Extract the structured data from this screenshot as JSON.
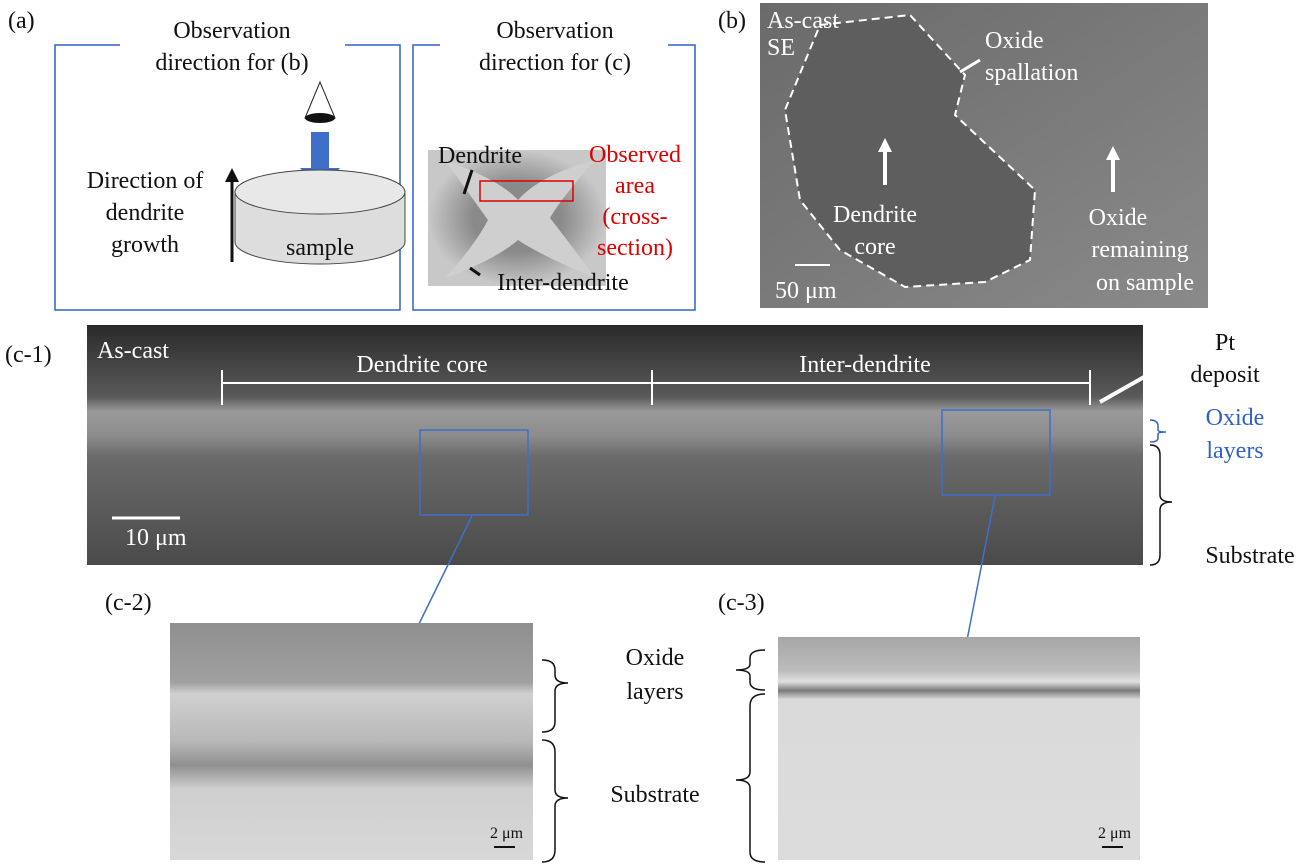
{
  "panel_a": {
    "label": "(a)",
    "left_box": {
      "title": [
        "Observation",
        "direction for (b)"
      ],
      "growth_label": [
        "Direction of",
        "dendrite",
        "growth"
      ],
      "sample": "sample"
    },
    "right_box": {
      "title": [
        "Observation",
        "direction for (c)"
      ],
      "dendrite": "Dendrite",
      "observed_area": [
        "Observed",
        "area",
        "(cross-",
        "section)"
      ],
      "inter_dendrite": "Inter-dendrite"
    }
  },
  "panel_b": {
    "label": "(b)",
    "mode": [
      "As-cast",
      "SE"
    ],
    "oxide_spallation": [
      "Oxide",
      "spallation"
    ],
    "dendrite_core": [
      "Dendrite",
      "core"
    ],
    "oxide_remaining": [
      "Oxide",
      "remaining",
      "on sample"
    ],
    "scale_bar": "50 μm"
  },
  "panel_c1": {
    "label": "(c-1)",
    "mode": "As-cast",
    "dendrite_core": "Dendrite core",
    "inter_dendrite": "Inter-dendrite",
    "pt_deposit": [
      "Pt",
      "deposit"
    ],
    "oxide_layers": [
      "Oxide",
      "layers"
    ],
    "substrate": "Substrate",
    "scale_bar": "10 μm"
  },
  "panel_c2": {
    "label": "(c-2)",
    "scale_bar": "2 μm"
  },
  "panel_c3": {
    "label": "(c-3)",
    "scale_bar": "2 μm"
  },
  "middle_labels": {
    "oxide_layers": [
      "Oxide",
      "layers"
    ],
    "substrate": "Substrate"
  }
}
